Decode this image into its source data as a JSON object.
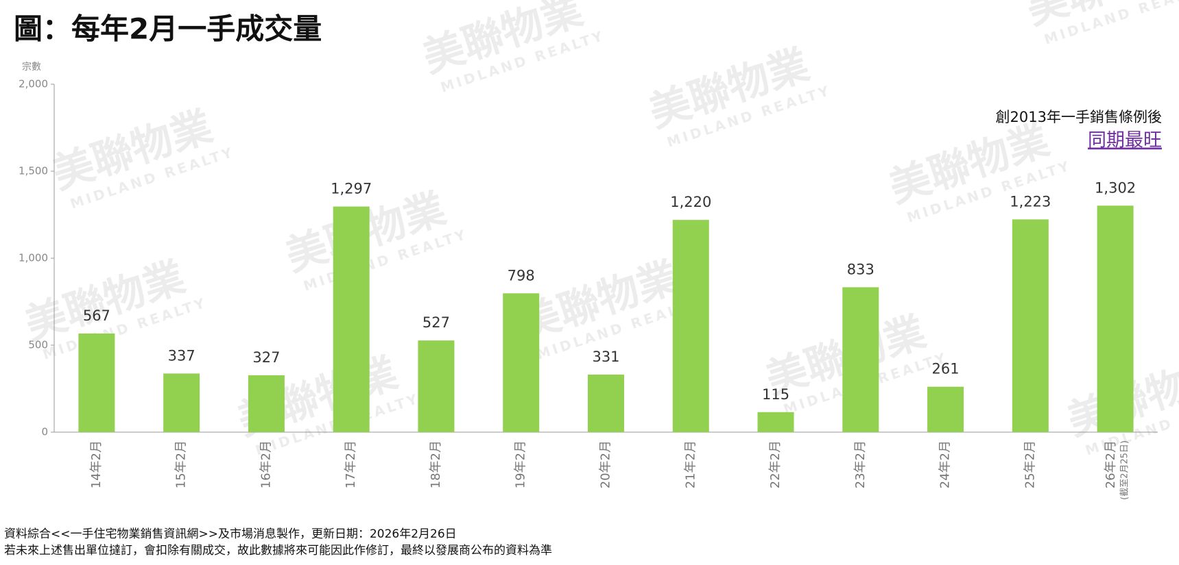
{
  "chart_data": {
    "type": "bar",
    "title": "圖：每年2月一手成交量",
    "y_label": "宗數",
    "categories": [
      "14年2月",
      "15年2月",
      "16年2月",
      "17年2月",
      "18年2月",
      "19年2月",
      "20年2月",
      "21年2月",
      "22年2月",
      "23年2月",
      "24年2月",
      "25年2月",
      "26年2月"
    ],
    "category_note": "(截至2月25日)",
    "values": [
      567,
      337,
      327,
      1297,
      527,
      798,
      331,
      1220,
      115,
      833,
      261,
      1223,
      1302
    ],
    "value_labels": [
      "567",
      "337",
      "327",
      "1,297",
      "527",
      "798",
      "331",
      "1,220",
      "115",
      "833",
      "261",
      "1,223",
      "1,302"
    ],
    "color": "#92d050",
    "ylim": [
      0,
      2000
    ],
    "yticks": [
      0,
      500,
      {
        "value": 1000,
        "label": "1,000"
      },
      {
        "value": 1500,
        "label": "1,500"
      },
      {
        "value": 2000,
        "label": "2,000"
      }
    ],
    "annotation": {
      "line1": "創2013年一手銷售條例後",
      "line2": "同期最旺",
      "color": "#7030a0"
    },
    "footnotes": [
      "資料綜合<<一手住宅物業銷售資訊網>>及市場消息製作，更新日期：2026年2月26日",
      "若未來上述售出單位撻訂，會扣除有關成交，故此數據將來可能因此作修訂，最終以發展商公布的資料為準"
    ],
    "watermark": {
      "name": "美聯物業",
      "sub": "MIDLAND REALTY"
    }
  }
}
